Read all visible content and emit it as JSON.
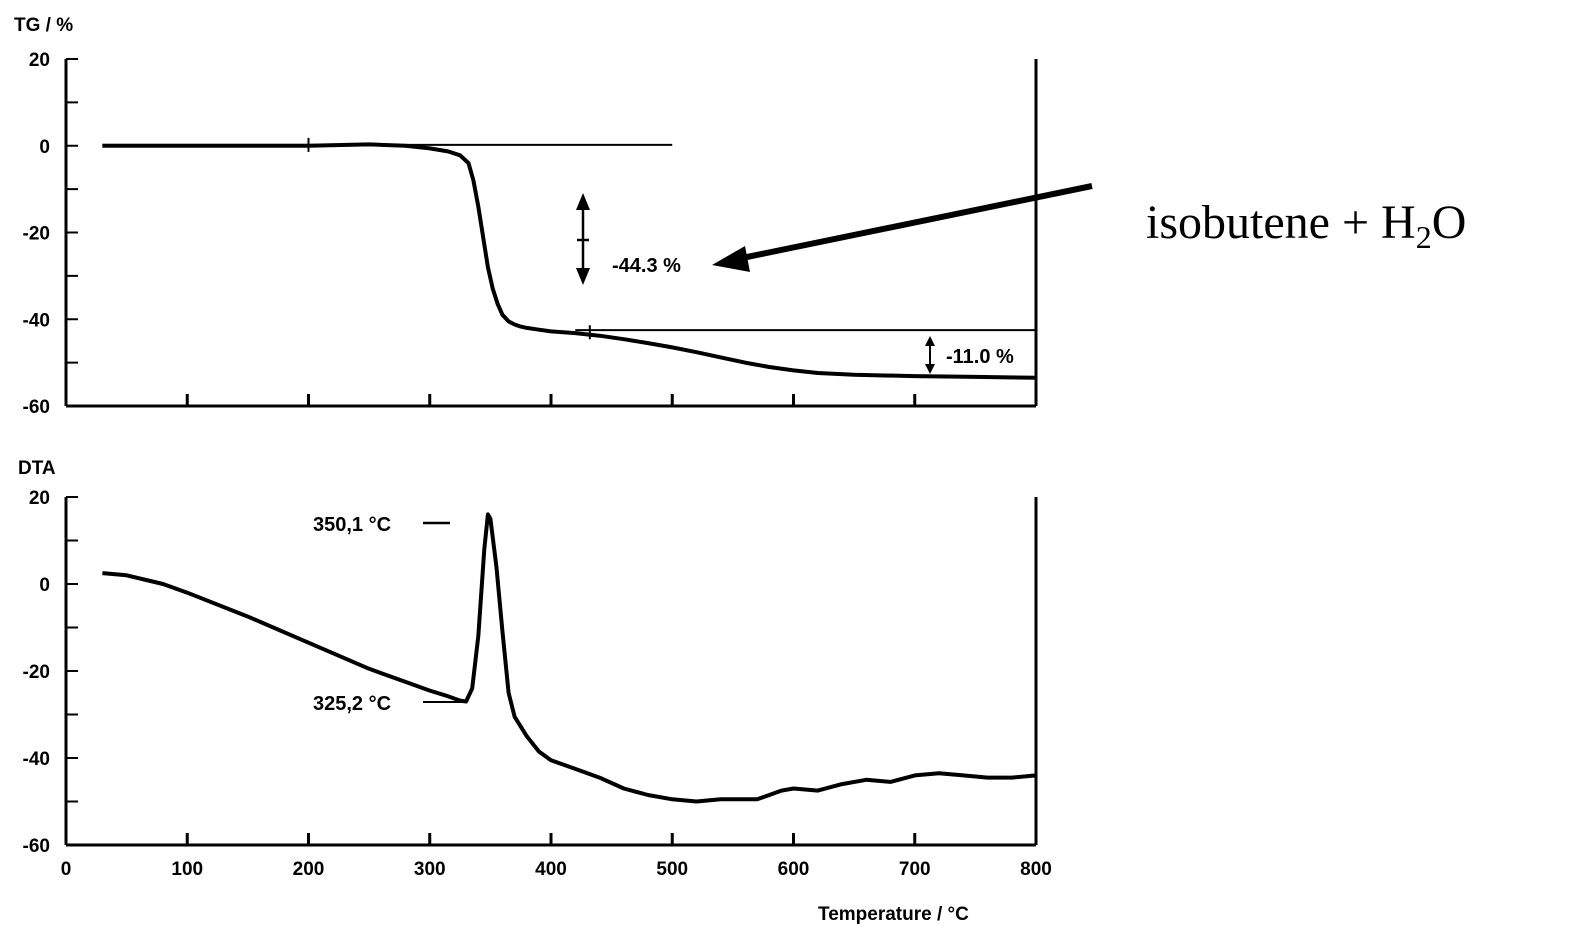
{
  "chart_data": [
    {
      "type": "line",
      "ylabel": "TG / %",
      "ylim": [
        -60,
        20
      ],
      "xlim": [
        0,
        800
      ],
      "yticks": [
        20,
        0,
        -20,
        -40,
        -60
      ],
      "series": [
        {
          "x": [
            30,
            100,
            200,
            250,
            280,
            300,
            315,
            325,
            332,
            336,
            340,
            344,
            348,
            352,
            356,
            360,
            365,
            370,
            375,
            380,
            390,
            400,
            420,
            440,
            460,
            480,
            500,
            520,
            540,
            560,
            580,
            600,
            620,
            650,
            700,
            750,
            800
          ],
          "y": [
            0,
            0,
            0,
            0.3,
            0,
            -0.6,
            -1.3,
            -2.2,
            -4,
            -8,
            -14,
            -21,
            -28,
            -33,
            -36.5,
            -39,
            -40.5,
            -41.2,
            -41.7,
            -42,
            -42.4,
            -42.8,
            -43.2,
            -43.8,
            -44.6,
            -45.5,
            -46.5,
            -47.6,
            -48.8,
            -50,
            -51,
            -51.8,
            -52.4,
            -52.8,
            -53.1,
            -53.3,
            -53.5
          ]
        }
      ],
      "reference_lines": [
        {
          "x": [
            30,
            500
          ],
          "y": [
            0.2,
            0.2
          ]
        },
        {
          "x": [
            420,
            800
          ],
          "y": [
            -42.5,
            -42.5
          ]
        }
      ],
      "annotations": [
        {
          "text": "-44.3 %",
          "x": 478,
          "y": -27
        },
        {
          "text": "-11.0 %",
          "x": 723,
          "y": -48.5
        }
      ],
      "side_label": {
        "text": "isobutene + H",
        "subscript": "2",
        "suffix": "O"
      }
    },
    {
      "type": "line",
      "ylabel": "DTA",
      "xlabel": "Temperature / °C",
      "ylim": [
        -60,
        20
      ],
      "xlim": [
        0,
        800
      ],
      "yticks": [
        20,
        0,
        -20,
        -40,
        -60
      ],
      "xticks": [
        "0",
        "100",
        "200",
        "300",
        "400",
        "500",
        "600",
        "700",
        "800"
      ],
      "series": [
        {
          "x": [
            30,
            50,
            80,
            100,
            150,
            200,
            250,
            280,
            300,
            315,
            325,
            330,
            335,
            340,
            345,
            348,
            350,
            355,
            360,
            365,
            370,
            380,
            390,
            400,
            420,
            440,
            460,
            480,
            500,
            520,
            540,
            560,
            570,
            580,
            590,
            600,
            620,
            640,
            660,
            680,
            700,
            720,
            740,
            760,
            780,
            800
          ],
          "y": [
            2.5,
            2,
            0,
            -2,
            -7.5,
            -13.5,
            -19.5,
            -22.5,
            -24.5,
            -25.8,
            -26.8,
            -27,
            -24,
            -12,
            8,
            16,
            15,
            4,
            -11,
            -25,
            -30.5,
            -35,
            -38.5,
            -40.5,
            -42.5,
            -44.5,
            -47,
            -48.5,
            -49.5,
            -50,
            -49.5,
            -49.5,
            -49.5,
            -48.5,
            -47.5,
            -47,
            -47.5,
            -46,
            -45,
            -45.5,
            -44,
            -43.5,
            -44,
            -44.5,
            -44.5,
            -44
          ]
        }
      ],
      "annotations": [
        {
          "text": "350,1 °C",
          "x": 308,
          "y": 14
        },
        {
          "text": "325,2 °C",
          "x": 308,
          "y": -27
        }
      ]
    }
  ]
}
